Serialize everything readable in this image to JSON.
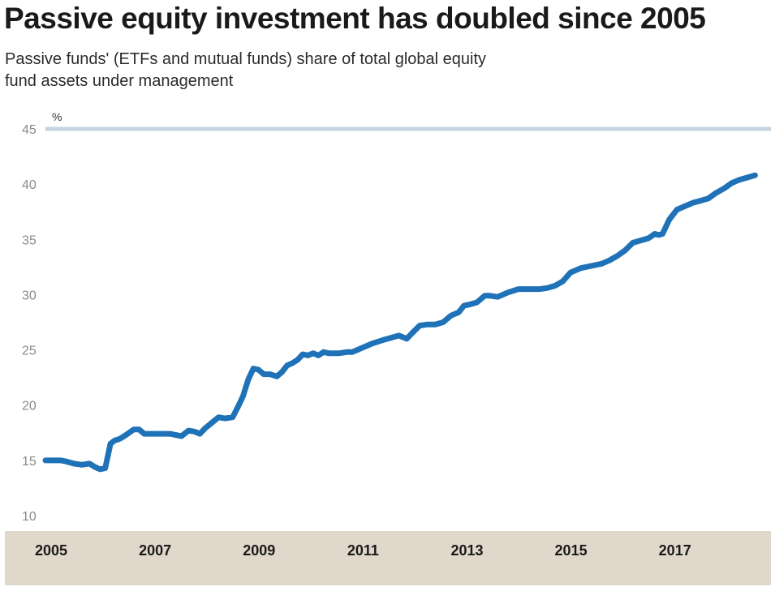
{
  "title": "Passive equity investment has doubled since 2005",
  "subtitle": "Passive funds' (ETFs and mutual funds) share of total global equity fund assets under management",
  "colors": {
    "line": "#1f72b8",
    "band": "#e0d8cb",
    "topline": "#c5d4de",
    "ytext": "#8a8a8a"
  },
  "chart_data": {
    "type": "line",
    "title": "Passive equity investment has doubled since 2005",
    "subtitle": "Passive funds' (ETFs and mutual funds) share of total global equity fund assets under management",
    "unit": "%",
    "xlabel": "",
    "ylabel": "",
    "ylim": [
      10,
      45
    ],
    "xlim": [
      2005.0,
      2018.8
    ],
    "yticks": [
      "10",
      "15",
      "20",
      "25",
      "30",
      "35",
      "40",
      "45"
    ],
    "xticks": [
      "2005",
      "2007",
      "2009",
      "2011",
      "2013",
      "2015",
      "2017"
    ],
    "grid": false,
    "legend": "none",
    "series": [
      {
        "x": [
          2005.0,
          2005.1,
          2005.2,
          2005.3,
          2005.4,
          2005.55,
          2005.7,
          2005.85,
          2005.95,
          2006.05,
          2006.15,
          2006.25,
          2006.33,
          2006.4,
          2006.45,
          2006.55,
          2006.7,
          2006.8,
          2006.9,
          2007.0,
          2007.2,
          2007.4,
          2007.5,
          2007.62,
          2007.75,
          2007.87,
          2007.97,
          2008.07,
          2008.2,
          2008.33,
          2008.45,
          2008.6,
          2008.7,
          2008.8,
          2008.9,
          2009.0,
          2009.1,
          2009.2,
          2009.32,
          2009.45,
          2009.55,
          2009.65,
          2009.75,
          2009.85,
          2009.95,
          2010.05,
          2010.15,
          2010.25,
          2010.35,
          2010.45,
          2010.55,
          2010.65,
          2010.8,
          2010.9,
          2011.0,
          2011.1,
          2011.3,
          2011.5,
          2011.65,
          2011.8,
          2011.95,
          2012.05,
          2012.2,
          2012.35,
          2012.5,
          2012.65,
          2012.8,
          2012.95,
          2013.05,
          2013.15,
          2013.3,
          2013.45,
          2013.55,
          2013.7,
          2013.9,
          2014.1,
          2014.3,
          2014.5,
          2014.65,
          2014.8,
          2014.95,
          2015.1,
          2015.3,
          2015.5,
          2015.7,
          2015.85,
          2016.0,
          2016.15,
          2016.3,
          2016.45,
          2016.6,
          2016.72,
          2016.8,
          2016.87,
          2017.0,
          2017.15,
          2017.3,
          2017.45,
          2017.6,
          2017.75,
          2017.9,
          2018.05,
          2018.2,
          2018.35,
          2018.5,
          2018.65
        ],
        "values": [
          15.0,
          15.0,
          15.0,
          15.0,
          14.9,
          14.7,
          14.6,
          14.7,
          14.4,
          14.2,
          14.3,
          16.5,
          16.8,
          16.9,
          17.0,
          17.3,
          17.8,
          17.8,
          17.4,
          17.4,
          17.4,
          17.4,
          17.3,
          17.2,
          17.7,
          17.6,
          17.4,
          17.9,
          18.4,
          18.9,
          18.8,
          18.9,
          19.8,
          20.8,
          22.3,
          23.3,
          23.2,
          22.8,
          22.8,
          22.6,
          23.0,
          23.6,
          23.8,
          24.1,
          24.6,
          24.5,
          24.7,
          24.5,
          24.8,
          24.7,
          24.7,
          24.7,
          24.8,
          24.8,
          25.0,
          25.2,
          25.6,
          25.9,
          26.1,
          26.3,
          26.0,
          26.5,
          27.2,
          27.3,
          27.3,
          27.5,
          28.1,
          28.4,
          29.0,
          29.1,
          29.3,
          29.9,
          29.9,
          29.8,
          30.2,
          30.5,
          30.5,
          30.5,
          30.6,
          30.8,
          31.2,
          32.0,
          32.4,
          32.6,
          32.8,
          33.1,
          33.5,
          34.0,
          34.7,
          34.9,
          35.1,
          35.5,
          35.4,
          35.5,
          36.8,
          37.7,
          38.0,
          38.3,
          38.5,
          38.7,
          39.2,
          39.6,
          40.1,
          40.4,
          40.6,
          40.8
        ]
      }
    ]
  }
}
